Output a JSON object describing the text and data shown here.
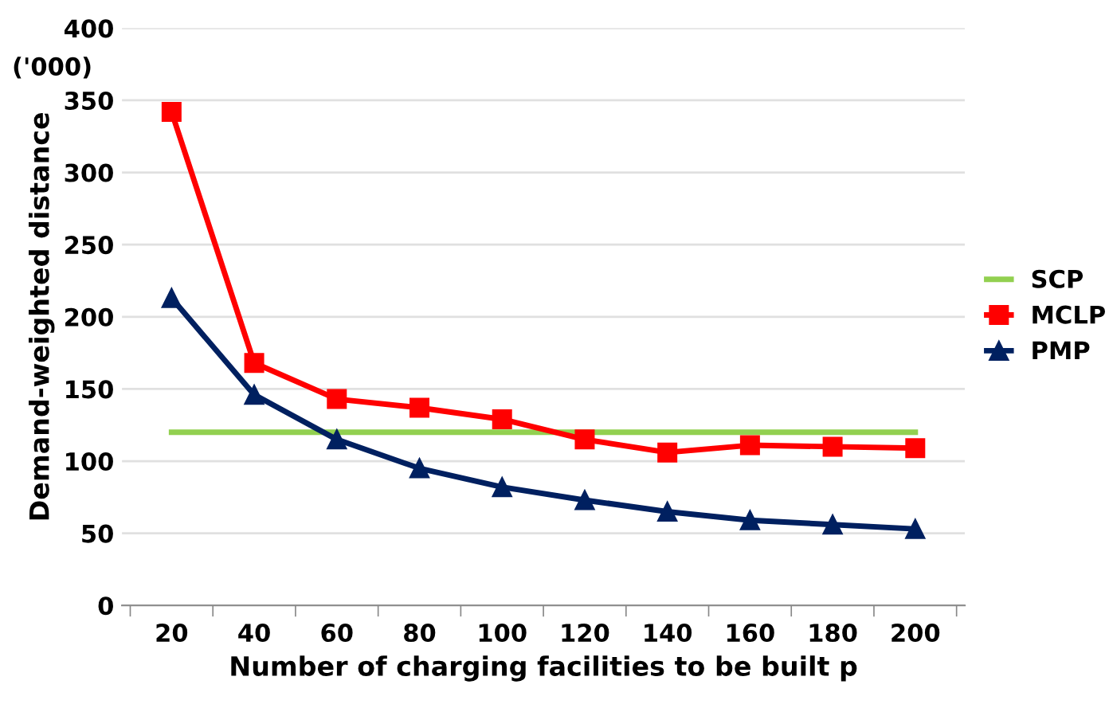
{
  "chart_data": {
    "type": "line",
    "xlabel": "Number of charging facilities to be built p",
    "ylabel": "Demand-weighted distance",
    "annotations": [
      "('000)"
    ],
    "categories": [
      "20",
      "40",
      "60",
      "80",
      "100",
      "120",
      "140",
      "160",
      "180",
      "200"
    ],
    "series": [
      {
        "name": "SCP",
        "color": "#92d050",
        "marker": "none",
        "values": [
          120,
          120,
          120,
          120,
          120,
          120,
          120,
          120,
          120,
          120
        ]
      },
      {
        "name": "MCLP",
        "color": "#ff0000",
        "marker": "square",
        "values": [
          342,
          168,
          143,
          137,
          129,
          115,
          106,
          111,
          110,
          109
        ]
      },
      {
        "name": "PMP",
        "color": "#002060",
        "marker": "triangle",
        "values": [
          213,
          146,
          115,
          95,
          82,
          73,
          65,
          59,
          56,
          53
        ]
      }
    ],
    "ylim": [
      0,
      400
    ],
    "yticks": [
      0,
      50,
      100,
      150,
      200,
      250,
      300,
      350,
      400
    ],
    "grid": "y",
    "legend": "right"
  }
}
